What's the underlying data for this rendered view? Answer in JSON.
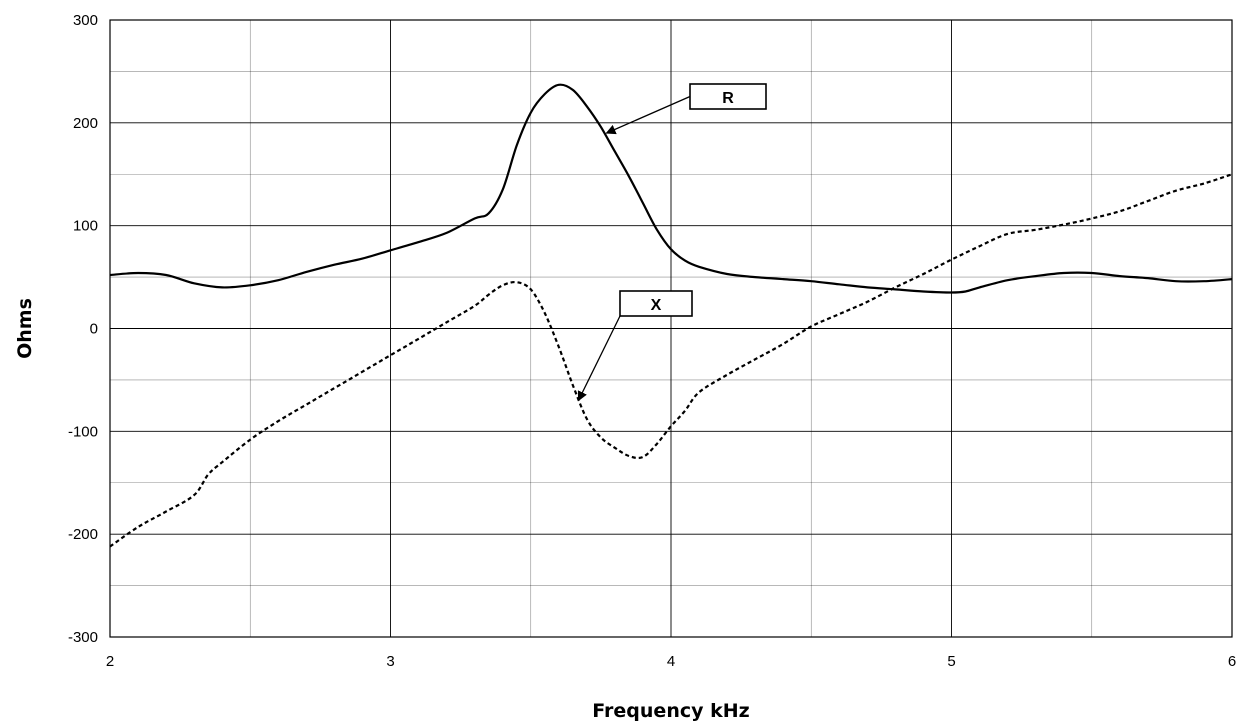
{
  "chart_data": {
    "type": "line",
    "title": "",
    "xlabel": "Frequency kHz",
    "ylabel": "Ohms",
    "xlim": [
      2,
      6
    ],
    "ylim": [
      -300,
      300
    ],
    "x_ticks": [
      2,
      3,
      4,
      5,
      6
    ],
    "y_ticks": [
      -300,
      -200,
      -100,
      0,
      100,
      200,
      300
    ],
    "x_tick_labels": [
      "2",
      "3",
      "4",
      "5",
      "6"
    ],
    "y_tick_labels": [
      "-300",
      "-200",
      "-100",
      "0",
      "100",
      "200",
      "300"
    ],
    "grid": true,
    "minor_grid": true,
    "series": [
      {
        "name": "R",
        "style": "solid",
        "color": "#000000",
        "points": [
          [
            2.0,
            52
          ],
          [
            2.1,
            54
          ],
          [
            2.2,
            52
          ],
          [
            2.3,
            44
          ],
          [
            2.4,
            40
          ],
          [
            2.5,
            42
          ],
          [
            2.6,
            47
          ],
          [
            2.7,
            55
          ],
          [
            2.8,
            62
          ],
          [
            2.9,
            68
          ],
          [
            3.0,
            76
          ],
          [
            3.1,
            84
          ],
          [
            3.2,
            93
          ],
          [
            3.3,
            107
          ],
          [
            3.35,
            112
          ],
          [
            3.4,
            135
          ],
          [
            3.45,
            178
          ],
          [
            3.5,
            210
          ],
          [
            3.55,
            228
          ],
          [
            3.6,
            237
          ],
          [
            3.65,
            232
          ],
          [
            3.7,
            216
          ],
          [
            3.75,
            196
          ],
          [
            3.8,
            172
          ],
          [
            3.85,
            148
          ],
          [
            3.9,
            122
          ],
          [
            3.95,
            96
          ],
          [
            4.0,
            77
          ],
          [
            4.05,
            66
          ],
          [
            4.1,
            60
          ],
          [
            4.2,
            53
          ],
          [
            4.3,
            50
          ],
          [
            4.4,
            48
          ],
          [
            4.5,
            46
          ],
          [
            4.6,
            43
          ],
          [
            4.7,
            40
          ],
          [
            4.8,
            38
          ],
          [
            4.9,
            36
          ],
          [
            5.0,
            35
          ],
          [
            5.05,
            36
          ],
          [
            5.1,
            40
          ],
          [
            5.2,
            47
          ],
          [
            5.3,
            51
          ],
          [
            5.4,
            54
          ],
          [
            5.5,
            54
          ],
          [
            5.6,
            51
          ],
          [
            5.7,
            49
          ],
          [
            5.8,
            46
          ],
          [
            5.9,
            46
          ],
          [
            6.0,
            48
          ]
        ]
      },
      {
        "name": "X",
        "style": "dashed",
        "color": "#000000",
        "points": [
          [
            2.0,
            -212
          ],
          [
            2.1,
            -193
          ],
          [
            2.2,
            -178
          ],
          [
            2.3,
            -162
          ],
          [
            2.35,
            -142
          ],
          [
            2.4,
            -130
          ],
          [
            2.5,
            -108
          ],
          [
            2.6,
            -90
          ],
          [
            2.7,
            -74
          ],
          [
            2.8,
            -58
          ],
          [
            2.9,
            -42
          ],
          [
            3.0,
            -26
          ],
          [
            3.1,
            -10
          ],
          [
            3.2,
            6
          ],
          [
            3.3,
            22
          ],
          [
            3.35,
            33
          ],
          [
            3.4,
            42
          ],
          [
            3.45,
            45
          ],
          [
            3.5,
            38
          ],
          [
            3.55,
            15
          ],
          [
            3.6,
            -18
          ],
          [
            3.65,
            -55
          ],
          [
            3.7,
            -88
          ],
          [
            3.75,
            -106
          ],
          [
            3.8,
            -116
          ],
          [
            3.85,
            -124
          ],
          [
            3.9,
            -125
          ],
          [
            3.95,
            -112
          ],
          [
            4.0,
            -95
          ],
          [
            4.05,
            -80
          ],
          [
            4.1,
            -62
          ],
          [
            4.2,
            -45
          ],
          [
            4.3,
            -30
          ],
          [
            4.4,
            -15
          ],
          [
            4.5,
            2
          ],
          [
            4.6,
            14
          ],
          [
            4.7,
            26
          ],
          [
            4.8,
            40
          ],
          [
            4.9,
            53
          ],
          [
            5.0,
            67
          ],
          [
            5.1,
            80
          ],
          [
            5.2,
            92
          ],
          [
            5.3,
            96
          ],
          [
            5.4,
            101
          ],
          [
            5.5,
            107
          ],
          [
            5.6,
            114
          ],
          [
            5.7,
            124
          ],
          [
            5.8,
            134
          ],
          [
            5.9,
            141
          ],
          [
            6.0,
            150
          ]
        ]
      }
    ],
    "annotations": [
      {
        "label": "R",
        "series": "R",
        "arrow_to": [
          3.77,
          190
        ]
      },
      {
        "label": "X",
        "series": "X",
        "arrow_to": [
          3.67,
          -70
        ]
      }
    ]
  }
}
